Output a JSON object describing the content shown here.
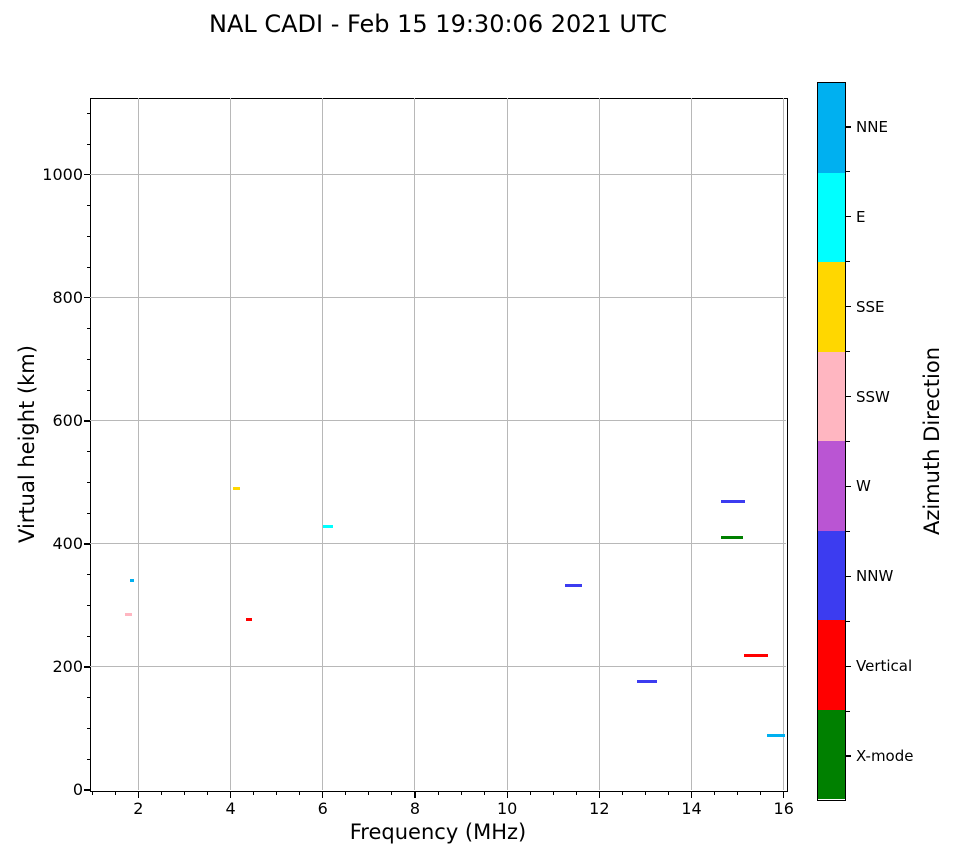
{
  "title": "NAL CADI - Feb 15 19:30:06 2021 UTC",
  "chart_data": {
    "type": "scatter",
    "title": "NAL CADI - Feb 15 19:30:06 2021 UTC",
    "xlabel": "Frequency (MHz)",
    "ylabel": "Virtual height (km)",
    "xlim": [
      0.95,
      16.05
    ],
    "ylim": [
      0,
      1125
    ],
    "xticks": [
      2,
      4,
      6,
      8,
      10,
      12,
      14,
      16
    ],
    "yticks": [
      0,
      200,
      400,
      600,
      800,
      1000
    ],
    "x_minor_step": 0.5,
    "y_minor_step": 50,
    "grid": true,
    "grid_color": "#b8b8b8",
    "background": "#ffffff",
    "legend_position": "right-colorbar",
    "colorbar": {
      "label": "Azimuth Direction",
      "categories": [
        {
          "label": "NNE",
          "color": "#00B0F0"
        },
        {
          "label": "E",
          "color": "#00FFFF"
        },
        {
          "label": "SSE",
          "color": "#FFD700"
        },
        {
          "label": "SSW",
          "color": "#FFB6C1"
        },
        {
          "label": "W",
          "color": "#BA55D3"
        },
        {
          "label": "NNW",
          "color": "#3C3CF0"
        },
        {
          "label": "Vertical",
          "color": "#FF0000"
        },
        {
          "label": "X-mode",
          "color": "#008000"
        }
      ]
    },
    "points": [
      {
        "freq": 1.86,
        "height_km": 340,
        "span_mhz": 0.09,
        "direction": "NNE"
      },
      {
        "freq": 1.78,
        "height_km": 286,
        "span_mhz": 0.15,
        "direction": "SSW"
      },
      {
        "freq": 4.13,
        "height_km": 490,
        "span_mhz": 0.17,
        "direction": "SSE"
      },
      {
        "freq": 4.41,
        "height_km": 277,
        "span_mhz": 0.13,
        "direction": "Vertical"
      },
      {
        "freq": 6.11,
        "height_km": 428,
        "span_mhz": 0.22,
        "direction": "E"
      },
      {
        "freq": 11.44,
        "height_km": 333,
        "span_mhz": 0.39,
        "direction": "NNW"
      },
      {
        "freq": 13.04,
        "height_km": 177,
        "span_mhz": 0.43,
        "direction": "NNW"
      },
      {
        "freq": 14.9,
        "height_km": 469,
        "span_mhz": 0.5,
        "direction": "NNW"
      },
      {
        "freq": 14.88,
        "height_km": 410,
        "span_mhz": 0.48,
        "direction": "X-mode"
      },
      {
        "freq": 15.4,
        "height_km": 219,
        "span_mhz": 0.54,
        "direction": "Vertical"
      },
      {
        "freq": 15.84,
        "height_km": 88,
        "span_mhz": 0.39,
        "direction": "NNE"
      }
    ]
  }
}
